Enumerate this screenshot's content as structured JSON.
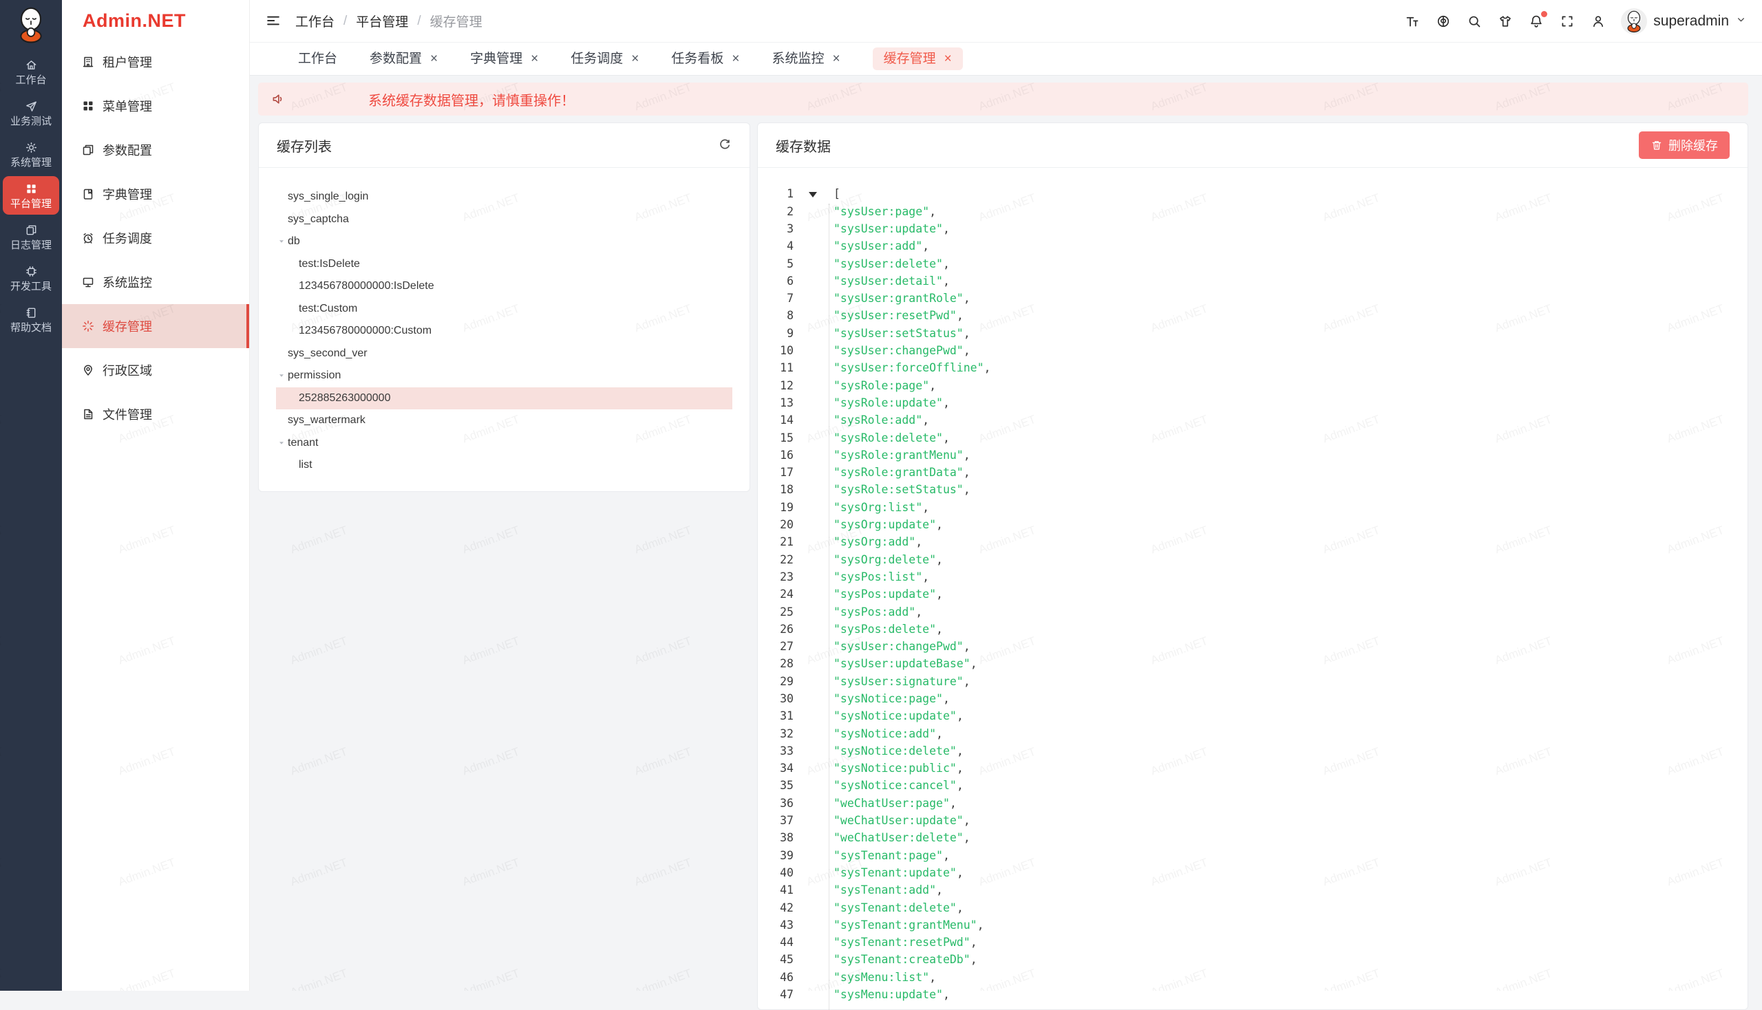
{
  "watermark": {
    "text": "Admin.NET"
  },
  "colors": {
    "accent_red": "#df4a40",
    "danger": "#f56c6c",
    "string_green": "#28ba68"
  },
  "rail": {
    "items": [
      {
        "name": "workbench",
        "label": "工作台",
        "icon": "home-icon"
      },
      {
        "name": "business-test",
        "label": "业务测试",
        "icon": "send-icon"
      },
      {
        "name": "system-management",
        "label": "系统管理",
        "icon": "gear-icon"
      },
      {
        "name": "platform-management",
        "label": "平台管理",
        "icon": "grid-icon",
        "active": true
      },
      {
        "name": "log-management",
        "label": "日志管理",
        "icon": "copy-icon"
      },
      {
        "name": "dev-tools",
        "label": "开发工具",
        "icon": "chip-icon"
      },
      {
        "name": "help-docs",
        "label": "帮助文档",
        "icon": "notebook-icon"
      }
    ]
  },
  "sidebar": {
    "logo": "Admin.NET",
    "items": [
      {
        "name": "tenant-management",
        "label": "租户管理",
        "icon": "building-icon"
      },
      {
        "name": "menu-management",
        "label": "菜单管理",
        "icon": "gridfill-icon"
      },
      {
        "name": "param-config",
        "label": "参数配置",
        "icon": "copy-icon"
      },
      {
        "name": "dict-management",
        "label": "字典管理",
        "icon": "book-icon"
      },
      {
        "name": "task-schedule",
        "label": "任务调度",
        "icon": "alarm-icon"
      },
      {
        "name": "system-monitor",
        "label": "系统监控",
        "icon": "monitor-icon"
      },
      {
        "name": "cache-management",
        "label": "缓存管理",
        "icon": "burst-icon",
        "active": true
      },
      {
        "name": "admin-region",
        "label": "行政区域",
        "icon": "pin-icon"
      },
      {
        "name": "file-management",
        "label": "文件管理",
        "icon": "file-icon"
      }
    ]
  },
  "header": {
    "breadcrumb": [
      "工作台",
      "平台管理",
      "缓存管理"
    ],
    "username": "superadmin"
  },
  "tabs": [
    {
      "name": "workbench",
      "label": "工作台",
      "closable": false
    },
    {
      "name": "param-config",
      "label": "参数配置",
      "closable": true
    },
    {
      "name": "dict-management",
      "label": "字典管理",
      "closable": true
    },
    {
      "name": "task-schedule",
      "label": "任务调度",
      "closable": true
    },
    {
      "name": "task-board",
      "label": "任务看板",
      "closable": true
    },
    {
      "name": "system-monitor",
      "label": "系统监控",
      "closable": true
    },
    {
      "name": "cache-management",
      "label": "缓存管理",
      "closable": true,
      "active": true
    }
  ],
  "alert": {
    "text": "系统缓存数据管理，请慎重操作！"
  },
  "cache_list": {
    "title": "缓存列表",
    "tree": [
      {
        "label": "sys_single_login",
        "level": 0
      },
      {
        "label": "sys_captcha",
        "level": 0
      },
      {
        "label": "db",
        "level": 0,
        "parent": true
      },
      {
        "label": "test:IsDelete",
        "level": 1
      },
      {
        "label": "123456780000000:IsDelete",
        "level": 1
      },
      {
        "label": "test:Custom",
        "level": 1
      },
      {
        "label": "123456780000000:Custom",
        "level": 1
      },
      {
        "label": "sys_second_ver",
        "level": 0
      },
      {
        "label": "permission",
        "level": 0,
        "parent": true
      },
      {
        "label": "252885263000000",
        "level": 1,
        "selected": true
      },
      {
        "label": "sys_wartermark",
        "level": 0
      },
      {
        "label": "tenant",
        "level": 0,
        "parent": true
      },
      {
        "label": "list",
        "level": 1
      }
    ]
  },
  "cache_data": {
    "title": "缓存数据",
    "delete_button": "删除缓存",
    "open_bracket": "[",
    "values": [
      "sysUser:page",
      "sysUser:update",
      "sysUser:add",
      "sysUser:delete",
      "sysUser:detail",
      "sysUser:grantRole",
      "sysUser:resetPwd",
      "sysUser:setStatus",
      "sysUser:changePwd",
      "sysUser:forceOffline",
      "sysRole:page",
      "sysRole:update",
      "sysRole:add",
      "sysRole:delete",
      "sysRole:grantMenu",
      "sysRole:grantData",
      "sysRole:setStatus",
      "sysOrg:list",
      "sysOrg:update",
      "sysOrg:add",
      "sysOrg:delete",
      "sysPos:list",
      "sysPos:update",
      "sysPos:add",
      "sysPos:delete",
      "sysUser:changePwd",
      "sysUser:updateBase",
      "sysUser:signature",
      "sysNotice:page",
      "sysNotice:update",
      "sysNotice:add",
      "sysNotice:delete",
      "sysNotice:public",
      "sysNotice:cancel",
      "weChatUser:page",
      "weChatUser:update",
      "weChatUser:delete",
      "sysTenant:page",
      "sysTenant:update",
      "sysTenant:add",
      "sysTenant:delete",
      "sysTenant:grantMenu",
      "sysTenant:resetPwd",
      "sysTenant:createDb",
      "sysMenu:list",
      "sysMenu:update"
    ]
  }
}
